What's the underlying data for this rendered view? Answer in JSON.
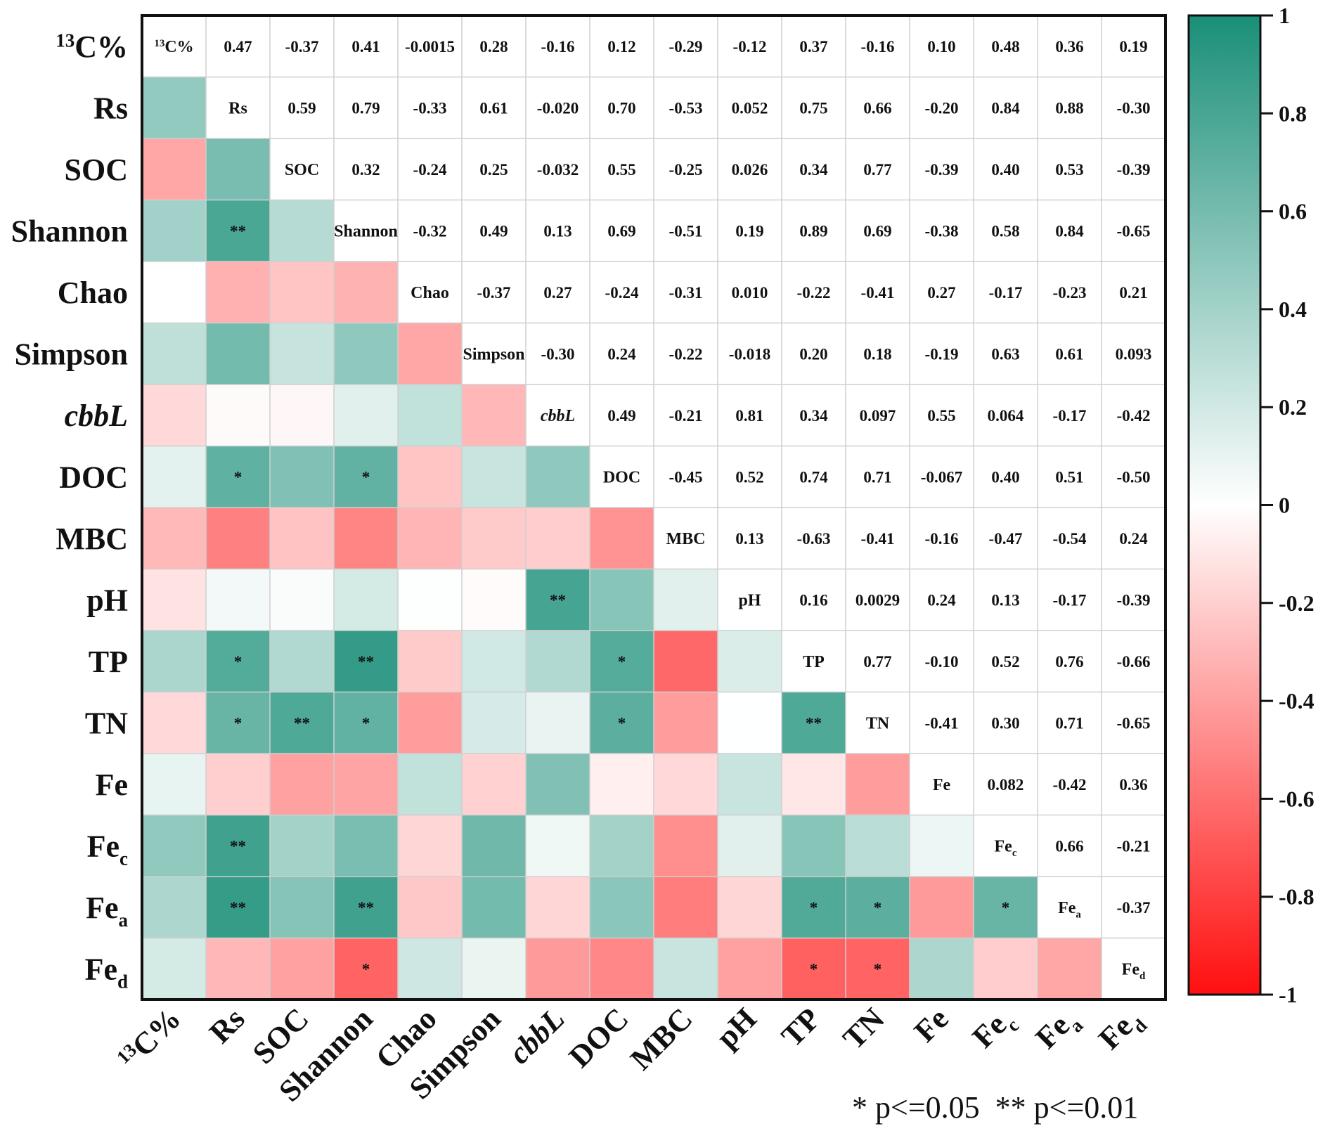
{
  "chart_data": {
    "type": "heatmap",
    "title": "",
    "variables": [
      {
        "label": "13C%",
        "sup": "13",
        "base": "C%",
        "sub": ""
      },
      {
        "label": "Rs",
        "base": "Rs",
        "sup": "",
        "sub": ""
      },
      {
        "label": "SOC",
        "base": "SOC",
        "sup": "",
        "sub": ""
      },
      {
        "label": "Shannon",
        "base": "Shannon",
        "sup": "",
        "sub": ""
      },
      {
        "label": "Chao",
        "base": "Chao",
        "sup": "",
        "sub": ""
      },
      {
        "label": "Simpson",
        "base": "Simpson",
        "sup": "",
        "sub": ""
      },
      {
        "label": "cbbL",
        "base": "cbbL",
        "sup": "",
        "sub": "",
        "italic": true
      },
      {
        "label": "DOC",
        "base": "DOC",
        "sup": "",
        "sub": ""
      },
      {
        "label": "MBC",
        "base": "MBC",
        "sup": "",
        "sub": ""
      },
      {
        "label": "pH",
        "base": "pH",
        "sup": "",
        "sub": ""
      },
      {
        "label": "TP",
        "base": "TP",
        "sup": "",
        "sub": ""
      },
      {
        "label": "TN",
        "base": "TN",
        "sup": "",
        "sub": ""
      },
      {
        "label": "Fe",
        "base": "Fe",
        "sup": "",
        "sub": ""
      },
      {
        "label": "Fec",
        "base": "Fe",
        "sup": "",
        "sub": "c"
      },
      {
        "label": "Fea",
        "base": "Fe",
        "sup": "",
        "sub": "a"
      },
      {
        "label": "Fed",
        "base": "Fe",
        "sup": "",
        "sub": "d"
      }
    ],
    "upper_text": [
      [
        "",
        "0.47",
        "-0.37",
        "0.41",
        "-0.0015",
        "0.28",
        "-0.16",
        "0.12",
        "-0.29",
        "-0.12",
        "0.37",
        "-0.16",
        "0.10",
        "0.48",
        "0.36",
        "0.19"
      ],
      [
        "",
        "",
        "0.59",
        "0.79",
        "-0.33",
        "0.61",
        "-0.020",
        "0.70",
        "-0.53",
        "0.052",
        "0.75",
        "0.66",
        "-0.20",
        "0.84",
        "0.88",
        "-0.30"
      ],
      [
        "",
        "",
        "",
        "0.32",
        "-0.24",
        "0.25",
        "-0.032",
        "0.55",
        "-0.25",
        "0.026",
        "0.34",
        "0.77",
        "-0.39",
        "0.40",
        "0.53",
        "-0.39"
      ],
      [
        "",
        "",
        "",
        "",
        "-0.32",
        "0.49",
        "0.13",
        "0.69",
        "-0.51",
        "0.19",
        "0.89",
        "0.69",
        "-0.38",
        "0.58",
        "0.84",
        "-0.65"
      ],
      [
        "",
        "",
        "",
        "",
        "",
        "-0.37",
        "0.27",
        "-0.24",
        "-0.31",
        "0.010",
        "-0.22",
        "-0.41",
        "0.27",
        "-0.17",
        "-0.23",
        "0.21"
      ],
      [
        "",
        "",
        "",
        "",
        "",
        "",
        "-0.30",
        "0.24",
        "-0.22",
        "-0.018",
        "0.20",
        "0.18",
        "-0.19",
        "0.63",
        "0.61",
        "0.093"
      ],
      [
        "",
        "",
        "",
        "",
        "",
        "",
        "",
        "0.49",
        "-0.21",
        "0.81",
        "0.34",
        "0.097",
        "0.55",
        "0.064",
        "-0.17",
        "-0.42"
      ],
      [
        "",
        "",
        "",
        "",
        "",
        "",
        "",
        "",
        "-0.45",
        "0.52",
        "0.74",
        "0.71",
        "-0.067",
        "0.40",
        "0.51",
        "-0.50"
      ],
      [
        "",
        "",
        "",
        "",
        "",
        "",
        "",
        "",
        "",
        "0.13",
        "-0.63",
        "-0.41",
        "-0.16",
        "-0.47",
        "-0.54",
        "0.24"
      ],
      [
        "",
        "",
        "",
        "",
        "",
        "",
        "",
        "",
        "",
        "",
        "0.16",
        "0.0029",
        "0.24",
        "0.13",
        "-0.17",
        "-0.39"
      ],
      [
        "",
        "",
        "",
        "",
        "",
        "",
        "",
        "",
        "",
        "",
        "",
        "0.77",
        "-0.10",
        "0.52",
        "0.76",
        "-0.66"
      ],
      [
        "",
        "",
        "",
        "",
        "",
        "",
        "",
        "",
        "",
        "",
        "",
        "",
        "-0.41",
        "0.30",
        "0.71",
        "-0.65"
      ],
      [
        "",
        "",
        "",
        "",
        "",
        "",
        "",
        "",
        "",
        "",
        "",
        "",
        "",
        "0.082",
        "-0.42",
        "0.36"
      ],
      [
        "",
        "",
        "",
        "",
        "",
        "",
        "",
        "",
        "",
        "",
        "",
        "",
        "",
        "",
        "0.66",
        "-0.21"
      ],
      [
        "",
        "",
        "",
        "",
        "",
        "",
        "",
        "",
        "",
        "",
        "",
        "",
        "",
        "",
        "",
        "-0.37"
      ],
      [
        "",
        "",
        "",
        "",
        "",
        "",
        "",
        "",
        "",
        "",
        "",
        "",
        "",
        "",
        "",
        ""
      ]
    ],
    "significance_lower": [
      [
        "",
        "",
        "",
        "",
        "",
        "",
        "",
        "",
        "",
        "",
        "",
        "",
        "",
        "",
        "",
        ""
      ],
      [
        "",
        "",
        "",
        "",
        "",
        "",
        "",
        "",
        "",
        "",
        "",
        "",
        "",
        "",
        "",
        ""
      ],
      [
        "",
        "",
        "",
        "",
        "",
        "",
        "",
        "",
        "",
        "",
        "",
        "",
        "",
        "",
        "",
        ""
      ],
      [
        "",
        "**",
        "",
        "",
        "",
        "",
        "",
        "",
        "",
        "",
        "",
        "",
        "",
        "",
        "",
        ""
      ],
      [
        "",
        "",
        "",
        "",
        "",
        "",
        "",
        "",
        "",
        "",
        "",
        "",
        "",
        "",
        "",
        ""
      ],
      [
        "",
        "",
        "",
        "",
        "",
        "",
        "",
        "",
        "",
        "",
        "",
        "",
        "",
        "",
        "",
        ""
      ],
      [
        "",
        "",
        "",
        "",
        "",
        "",
        "",
        "",
        "",
        "",
        "",
        "",
        "",
        "",
        "",
        ""
      ],
      [
        "",
        "*",
        "",
        "*",
        "",
        "",
        "",
        "",
        "",
        "",
        "",
        "",
        "",
        "",
        "",
        ""
      ],
      [
        "",
        "",
        "",
        "",
        "",
        "",
        "",
        "",
        "",
        "",
        "",
        "",
        "",
        "",
        "",
        ""
      ],
      [
        "",
        "",
        "",
        "",
        "",
        "",
        "**",
        "",
        "",
        "",
        "",
        "",
        "",
        "",
        "",
        ""
      ],
      [
        "",
        "*",
        "",
        "**",
        "",
        "",
        "",
        "*",
        "",
        "",
        "",
        "",
        "",
        "",
        "",
        ""
      ],
      [
        "",
        "*",
        "**",
        "*",
        "",
        "",
        "",
        "*",
        "",
        "",
        "**",
        "",
        "",
        "",
        "",
        ""
      ],
      [
        "",
        "",
        "",
        "",
        "",
        "",
        "",
        "",
        "",
        "",
        "",
        "",
        "",
        "",
        "",
        ""
      ],
      [
        "",
        "**",
        "",
        "",
        "",
        "",
        "",
        "",
        "",
        "",
        "",
        "",
        "",
        "",
        "",
        ""
      ],
      [
        "",
        "**",
        "",
        "**",
        "",
        "",
        "",
        "",
        "",
        "",
        "*",
        "*",
        "",
        "*",
        "",
        ""
      ],
      [
        "",
        "",
        "",
        "*",
        "",
        "",
        "",
        "",
        "",
        "",
        "*",
        "*",
        "",
        "",
        "",
        ""
      ]
    ],
    "colorbar": {
      "range": [
        -1,
        1
      ],
      "ticks": [
        "1",
        "0.8",
        "0.6",
        "0.4",
        "0.2",
        "0",
        "-0.2",
        "-0.4",
        "-0.6",
        "-0.8",
        "-1"
      ],
      "positive_color": "#1a8f78",
      "zero_color": "#ffffff",
      "negative_color": "#ff0f0f"
    },
    "legend_note": "* p<=0.05  ** p<=0.01",
    "grid_color": "#cfcfcf",
    "border_color": "#111111"
  }
}
